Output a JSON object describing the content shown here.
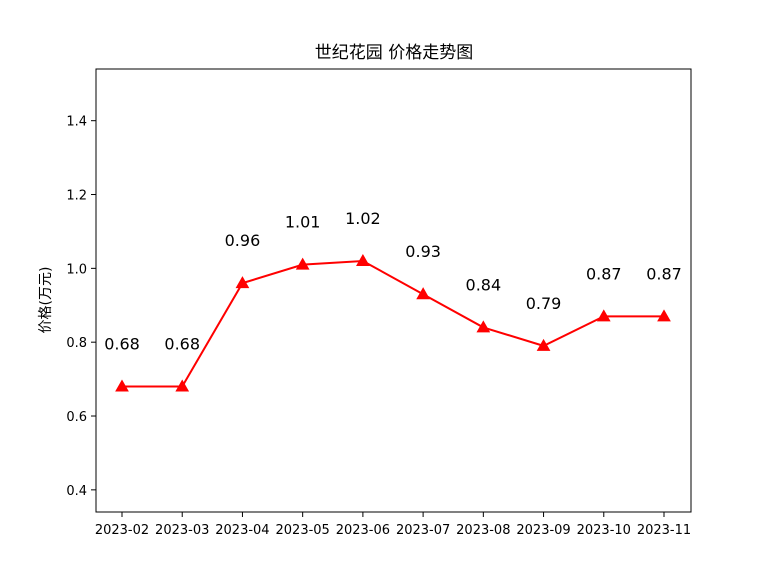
{
  "chart_data": {
    "type": "line",
    "title": "世纪花园 价格走势图",
    "xlabel": "",
    "ylabel": "价格(万元)",
    "categories": [
      "2023-02",
      "2023-03",
      "2023-04",
      "2023-05",
      "2023-06",
      "2023-07",
      "2023-08",
      "2023-09",
      "2023-10",
      "2023-11"
    ],
    "series": [
      {
        "values": [
          0.68,
          0.68,
          0.96,
          1.01,
          1.02,
          0.93,
          0.84,
          0.79,
          0.87,
          0.87
        ]
      }
    ],
    "data_labels": [
      "0.68",
      "0.68",
      "0.96",
      "1.01",
      "1.02",
      "0.93",
      "0.84",
      "0.79",
      "0.87",
      "0.87"
    ],
    "ylim": [
      0.34,
      1.54
    ],
    "yticks": [
      0.4,
      0.6,
      0.8,
      1.0,
      1.2,
      1.4
    ],
    "ytick_labels": [
      "0.4",
      "0.6",
      "0.8",
      "1.0",
      "1.2",
      "1.4"
    ],
    "grid": false,
    "legend": "none",
    "line_color": "#ff0000",
    "marker": "triangle-up"
  }
}
